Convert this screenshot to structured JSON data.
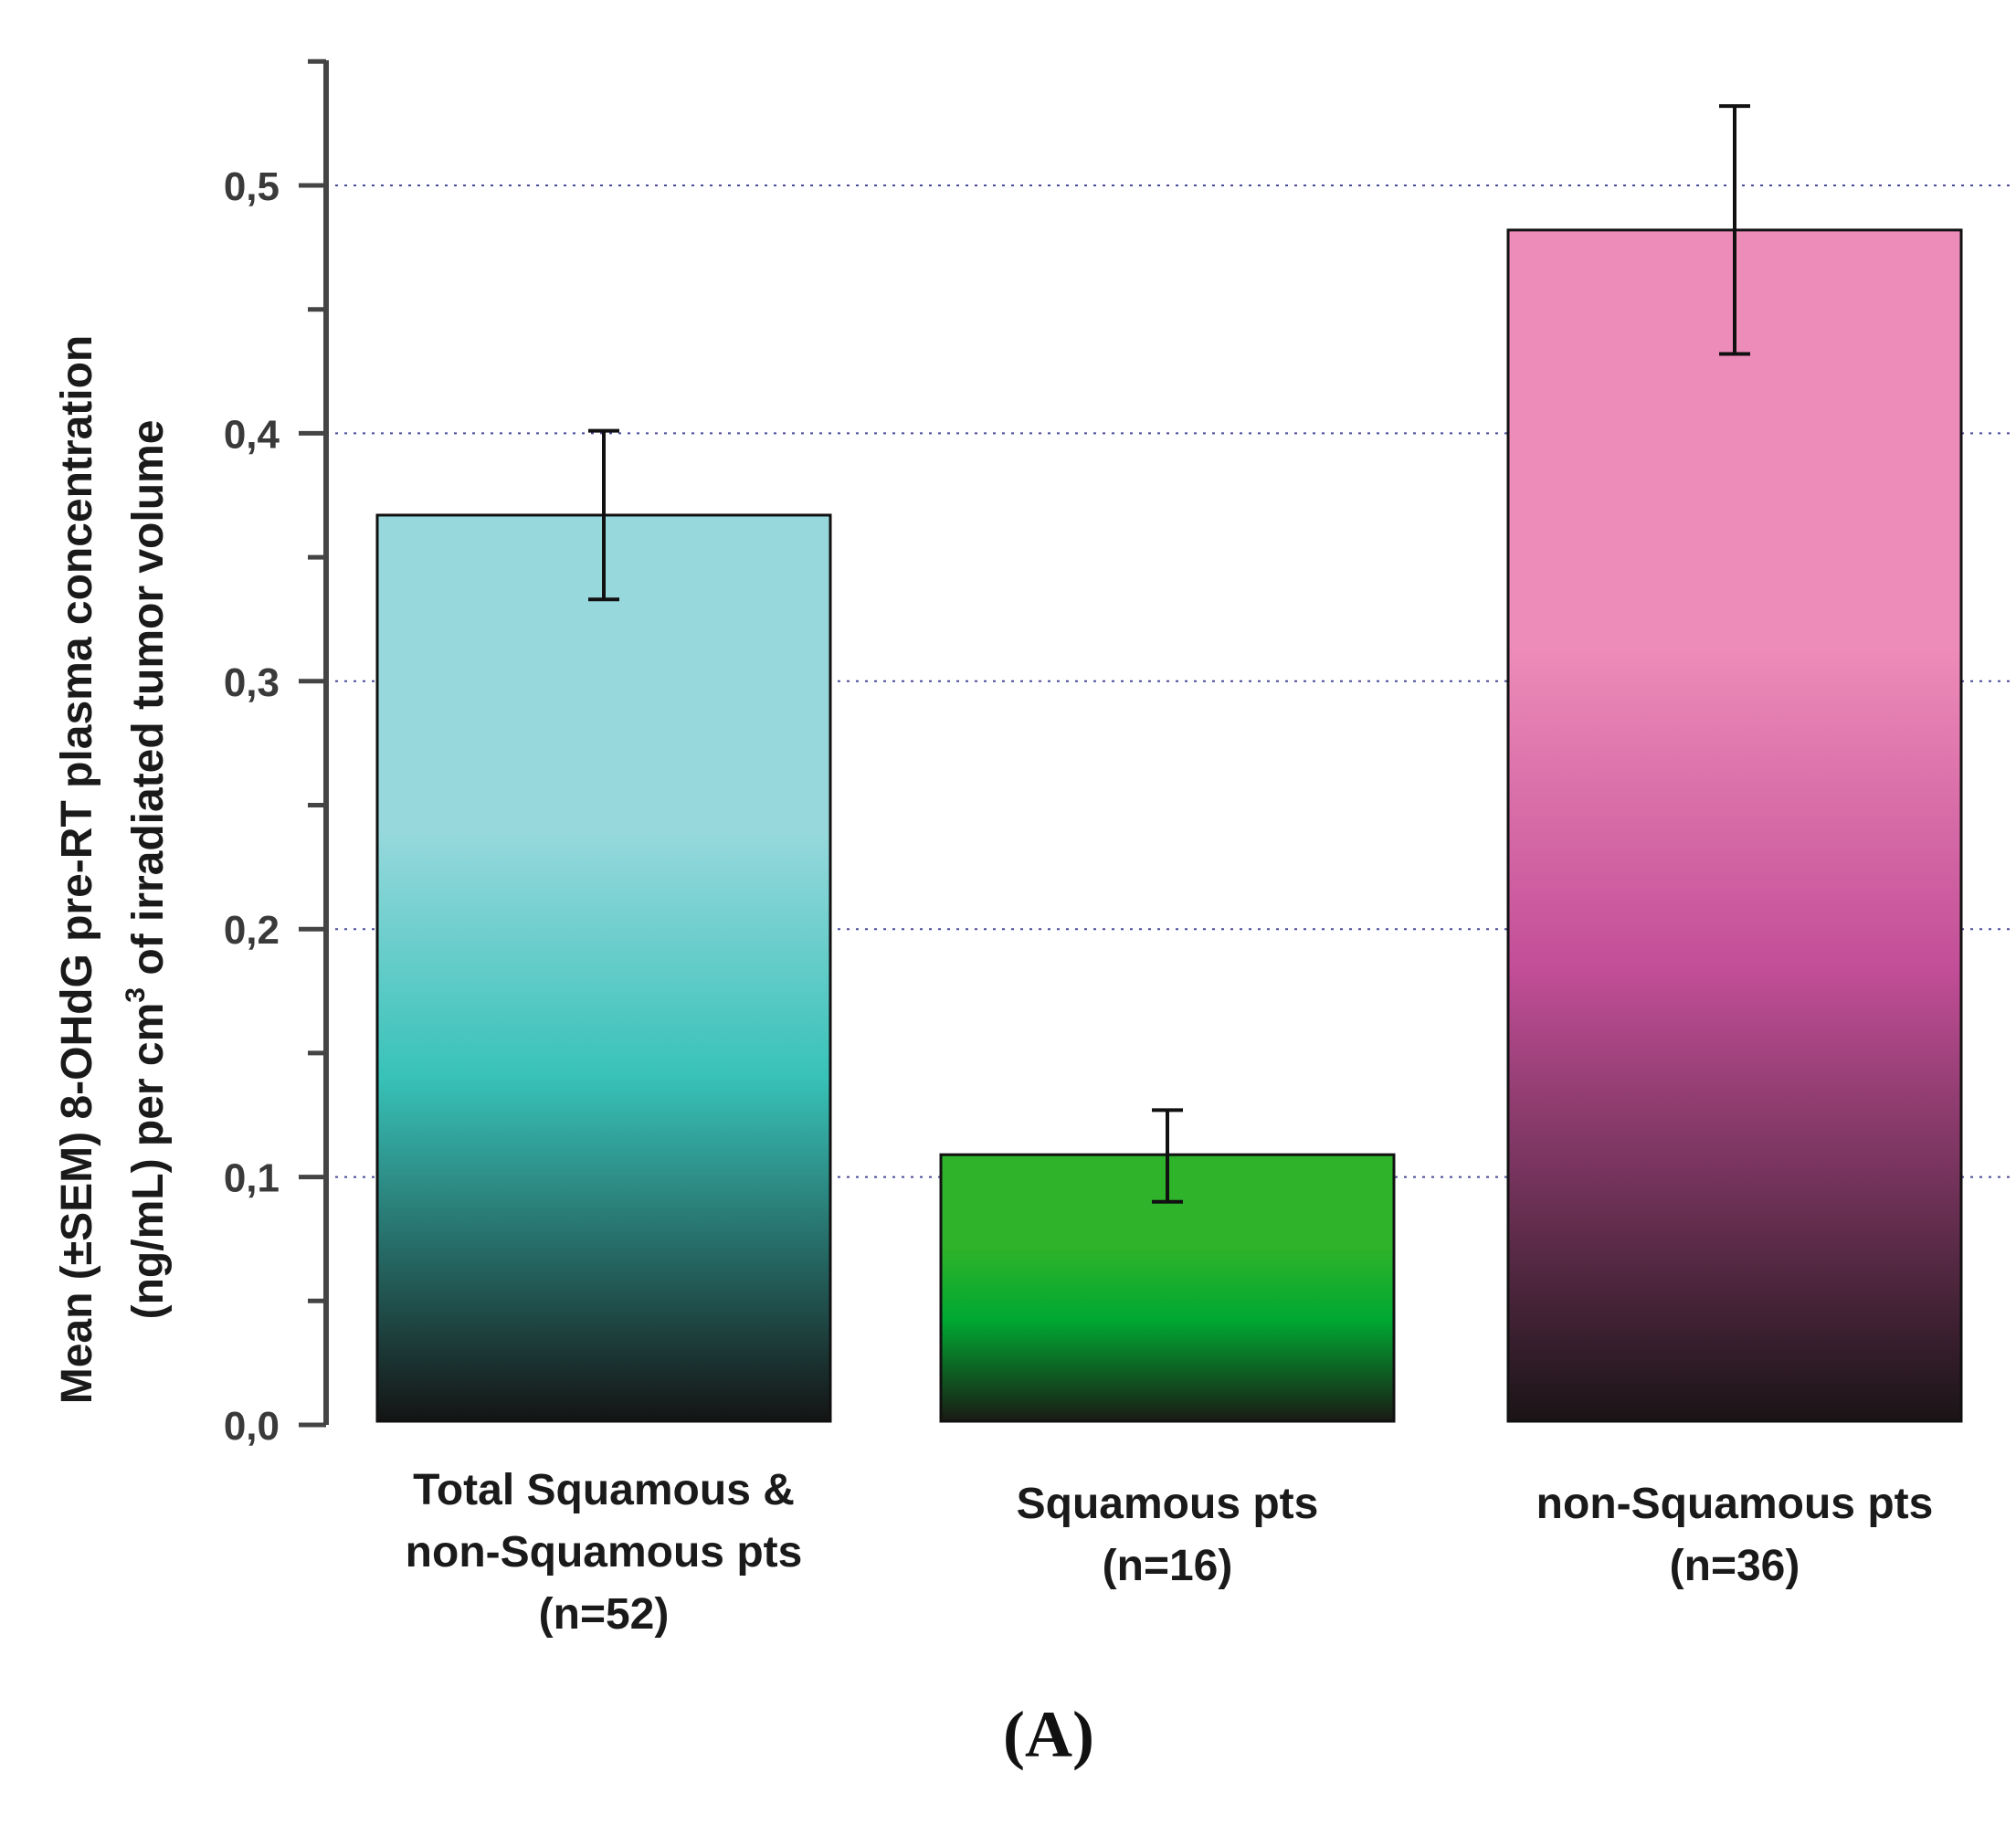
{
  "chart_data": {
    "type": "bar",
    "categories": [
      [
        "Total Squamous &",
        "non-Squamous pts",
        "(n=52)"
      ],
      [
        "Squamous pts",
        "(n=16)"
      ],
      [
        "non-Squamous pts",
        "(n=36)"
      ]
    ],
    "values": [
      0.367,
      0.109,
      0.482
    ],
    "errors": [
      {
        "low": 0.333,
        "high": 0.401
      },
      {
        "low": 0.09,
        "high": 0.127
      },
      {
        "low": 0.432,
        "high": 0.532
      }
    ],
    "bar_colors": [
      {
        "top": "#96d8dc",
        "mid": "#38c2b8",
        "bottom": "#141414"
      },
      {
        "top": "#2eb32a",
        "mid": "#00a832",
        "bottom": "#1a1a14"
      },
      {
        "top": "#ee8cb9",
        "mid": "#c24e97",
        "bottom": "#1a1416"
      }
    ],
    "ylim": [
      0,
      0.55
    ],
    "yticks": [
      "0,0",
      "0,1",
      "0,2",
      "0,3",
      "0,4",
      "0,5"
    ],
    "ytick_values": [
      0,
      0.1,
      0.2,
      0.3,
      0.4,
      0.5
    ],
    "grid": "horizontal dotted",
    "ylabel_line1": "Mean (±SEM) 8-OHdG pre-RT plasma concentration",
    "ylabel_line2_pre": "(ng/mL) per cm",
    "ylabel_line2_sup": "3",
    "ylabel_line2_post": " of irradiated tumor volume",
    "xlabel": "",
    "panel_label": "(A)"
  }
}
